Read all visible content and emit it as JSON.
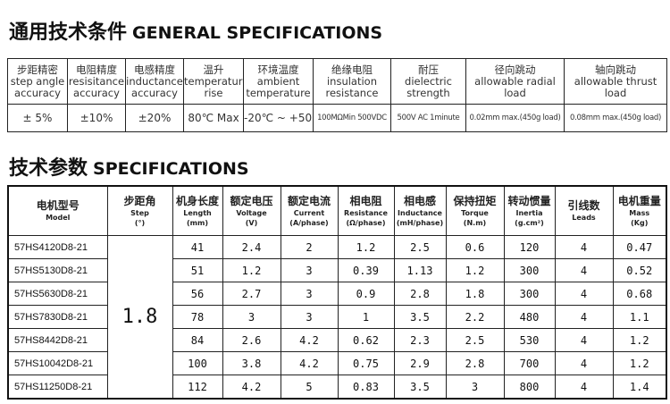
{
  "general": {
    "title_cn": "通用技术条件",
    "title_en": "GENERAL SPECIFICATIONS",
    "headers": [
      [
        "步距精密",
        "step angle",
        "accuracy"
      ],
      [
        "电阻精度",
        "resisitance",
        "accuracy"
      ],
      [
        "电感精度",
        "inductance",
        "accuracy"
      ],
      [
        "温升",
        "temperature",
        "rise"
      ],
      [
        "环境温度",
        "ambient",
        "temperature"
      ],
      [
        "绝缘电阻",
        "insulation",
        "resistance"
      ],
      [
        "耐压",
        "dielectric",
        "strength"
      ],
      [
        "径向跳动",
        "allowable radial",
        "load"
      ],
      [
        "轴向跳动",
        "allowable thrust",
        "load"
      ]
    ],
    "values": [
      "± 5%",
      "±10%",
      "±20%",
      "80℃ Max",
      "-20℃ ~ +50℃",
      "100MΩMin 500VDC",
      "500V AC 1minute",
      "0.02mm max.(450g load)",
      "0.08mm max.(450g load)"
    ]
  },
  "specs": {
    "title_cn": "技术参数",
    "title_en": "SPECIFICATIONS",
    "headers": [
      [
        "电机型号",
        "Model",
        ""
      ],
      [
        "步距角",
        "Step",
        "(°)"
      ],
      [
        "机身长度",
        "Length",
        "(mm)"
      ],
      [
        "额定电压",
        "Voltage",
        "(V)"
      ],
      [
        "额定电流",
        "Current",
        "(A/phase)"
      ],
      [
        "相电阻",
        "Resistance",
        "(Ω/phase)"
      ],
      [
        "相电感",
        "Inductance",
        "(mH/phase)"
      ],
      [
        "保持扭矩",
        "Torque",
        "(N.m)"
      ],
      [
        "转动惯量",
        "Inertia",
        "(g.cm²)"
      ],
      [
        "引线数",
        "Leads",
        ""
      ],
      [
        "电机重量",
        "Mass",
        "(Kg)"
      ]
    ],
    "step": "1.8",
    "rows": [
      [
        "57HS4120D8-21",
        "41",
        "2.4",
        "2",
        "1.2",
        "2.5",
        "0.6",
        "120",
        "4",
        "0.47"
      ],
      [
        "57HS5130D8-21",
        "51",
        "1.2",
        "3",
        "0.39",
        "1.13",
        "1.2",
        "300",
        "4",
        "0.52"
      ],
      [
        "57HS5630D8-21",
        "56",
        "2.7",
        "3",
        "0.9",
        "2.8",
        "1.8",
        "300",
        "4",
        "0.68"
      ],
      [
        "57HS7830D8-21",
        "78",
        "3",
        "3",
        "1",
        "3.5",
        "2.2",
        "480",
        "4",
        "1.1"
      ],
      [
        "57HS8442D8-21",
        "84",
        "2.6",
        "4.2",
        "0.62",
        "2.3",
        "2.5",
        "530",
        "4",
        "1.2"
      ],
      [
        "57HS10042D8-21",
        "100",
        "3.8",
        "4.2",
        "0.75",
        "2.9",
        "2.8",
        "700",
        "4",
        "1.2"
      ],
      [
        "57HS11250D8-21",
        "112",
        "4.2",
        "5",
        "0.83",
        "3.5",
        "3",
        "800",
        "4",
        "1.4"
      ]
    ]
  }
}
